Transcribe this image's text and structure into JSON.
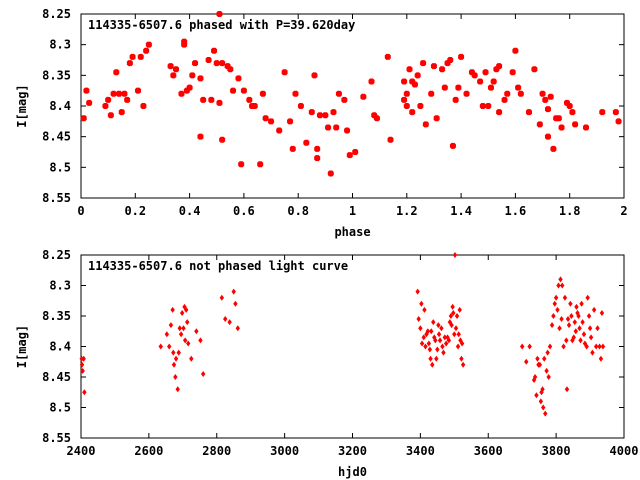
{
  "chart_data": [
    {
      "type": "scatter",
      "title": "114335-6507.6 phased with P=39.620day",
      "xlabel": "phase",
      "ylabel": "I[mag]",
      "xlim": [
        0,
        2
      ],
      "ylim": [
        8.55,
        8.25
      ],
      "y_inverted": true,
      "x_ticks": [
        "0",
        "0.2",
        "0.4",
        "0.6",
        "0.8",
        "1",
        "1.2",
        "1.4",
        "1.6",
        "1.8",
        "2"
      ],
      "y_ticks": [
        "8.25",
        "8.3",
        "8.35",
        "8.4",
        "8.45",
        "8.5",
        "8.55"
      ],
      "marker_color": "#ff0000",
      "marker": "filled-square",
      "points": [
        [
          0.01,
          8.42
        ],
        [
          0.02,
          8.375
        ],
        [
          0.03,
          8.395
        ],
        [
          0.09,
          8.4
        ],
        [
          0.1,
          8.39
        ],
        [
          0.11,
          8.415
        ],
        [
          0.12,
          8.38
        ],
        [
          0.13,
          8.345
        ],
        [
          0.14,
          8.38
        ],
        [
          0.15,
          8.41
        ],
        [
          0.16,
          8.38
        ],
        [
          0.17,
          8.39
        ],
        [
          0.18,
          8.33
        ],
        [
          0.19,
          8.32
        ],
        [
          0.21,
          8.375
        ],
        [
          0.22,
          8.32
        ],
        [
          0.23,
          8.4
        ],
        [
          0.24,
          8.31
        ],
        [
          0.25,
          8.3
        ],
        [
          0.33,
          8.335
        ],
        [
          0.34,
          8.35
        ],
        [
          0.35,
          8.34
        ],
        [
          0.37,
          8.38
        ],
        [
          0.38,
          8.295
        ],
        [
          0.38,
          8.3
        ],
        [
          0.39,
          8.375
        ],
        [
          0.4,
          8.37
        ],
        [
          0.41,
          8.35
        ],
        [
          0.42,
          8.33
        ],
        [
          0.44,
          8.355
        ],
        [
          0.44,
          8.45
        ],
        [
          0.45,
          8.39
        ],
        [
          0.47,
          8.325
        ],
        [
          0.48,
          8.39
        ],
        [
          0.49,
          8.31
        ],
        [
          0.5,
          8.33
        ],
        [
          0.51,
          8.25
        ],
        [
          0.51,
          8.395
        ],
        [
          0.52,
          8.33
        ],
        [
          0.52,
          8.455
        ],
        [
          0.54,
          8.335
        ],
        [
          0.55,
          8.34
        ],
        [
          0.56,
          8.375
        ],
        [
          0.58,
          8.355
        ],
        [
          0.59,
          8.495
        ],
        [
          0.6,
          8.375
        ],
        [
          0.62,
          8.39
        ],
        [
          0.63,
          8.4
        ],
        [
          0.64,
          8.4
        ],
        [
          0.66,
          8.495
        ],
        [
          0.67,
          8.38
        ],
        [
          0.68,
          8.42
        ],
        [
          0.7,
          8.425
        ],
        [
          0.73,
          8.44
        ],
        [
          0.75,
          8.345
        ],
        [
          0.77,
          8.425
        ],
        [
          0.78,
          8.47
        ],
        [
          0.79,
          8.38
        ],
        [
          0.81,
          8.4
        ],
        [
          0.83,
          8.46
        ],
        [
          0.85,
          8.41
        ],
        [
          0.86,
          8.35
        ],
        [
          0.87,
          8.47
        ],
        [
          0.87,
          8.485
        ],
        [
          0.88,
          8.415
        ],
        [
          0.9,
          8.415
        ],
        [
          0.91,
          8.435
        ],
        [
          0.92,
          8.51
        ],
        [
          0.93,
          8.41
        ],
        [
          0.94,
          8.435
        ],
        [
          0.95,
          8.38
        ],
        [
          0.97,
          8.39
        ],
        [
          0.98,
          8.44
        ],
        [
          0.99,
          8.48
        ],
        [
          1.01,
          8.475
        ],
        [
          1.04,
          8.385
        ],
        [
          1.07,
          8.36
        ],
        [
          1.08,
          8.415
        ],
        [
          1.09,
          8.42
        ],
        [
          1.13,
          8.32
        ],
        [
          1.14,
          8.455
        ],
        [
          1.19,
          8.36
        ],
        [
          1.19,
          8.39
        ],
        [
          1.2,
          8.38
        ],
        [
          1.2,
          8.4
        ],
        [
          1.21,
          8.34
        ],
        [
          1.22,
          8.36
        ],
        [
          1.22,
          8.41
        ],
        [
          1.23,
          8.365
        ],
        [
          1.24,
          8.35
        ],
        [
          1.25,
          8.4
        ],
        [
          1.26,
          8.33
        ],
        [
          1.27,
          8.43
        ],
        [
          1.29,
          8.38
        ],
        [
          1.3,
          8.335
        ],
        [
          1.31,
          8.42
        ],
        [
          1.33,
          8.34
        ],
        [
          1.34,
          8.37
        ],
        [
          1.35,
          8.33
        ],
        [
          1.36,
          8.325
        ],
        [
          1.37,
          8.465
        ],
        [
          1.38,
          8.39
        ],
        [
          1.39,
          8.37
        ],
        [
          1.4,
          8.32
        ],
        [
          1.42,
          8.38
        ],
        [
          1.44,
          8.345
        ],
        [
          1.45,
          8.35
        ],
        [
          1.47,
          8.36
        ],
        [
          1.48,
          8.4
        ],
        [
          1.49,
          8.345
        ],
        [
          1.5,
          8.4
        ],
        [
          1.51,
          8.37
        ],
        [
          1.52,
          8.36
        ],
        [
          1.53,
          8.34
        ],
        [
          1.54,
          8.335
        ],
        [
          1.54,
          8.41
        ],
        [
          1.56,
          8.39
        ],
        [
          1.57,
          8.38
        ],
        [
          1.59,
          8.345
        ],
        [
          1.6,
          8.31
        ],
        [
          1.61,
          8.37
        ],
        [
          1.62,
          8.38
        ],
        [
          1.65,
          8.41
        ],
        [
          1.67,
          8.34
        ],
        [
          1.69,
          8.43
        ],
        [
          1.7,
          8.38
        ],
        [
          1.71,
          8.39
        ],
        [
          1.72,
          8.405
        ],
        [
          1.72,
          8.45
        ],
        [
          1.73,
          8.385
        ],
        [
          1.74,
          8.47
        ],
        [
          1.75,
          8.42
        ],
        [
          1.76,
          8.42
        ],
        [
          1.77,
          8.435
        ],
        [
          1.79,
          8.395
        ],
        [
          1.8,
          8.4
        ],
        [
          1.81,
          8.41
        ],
        [
          1.82,
          8.43
        ],
        [
          1.86,
          8.435
        ],
        [
          1.92,
          8.41
        ],
        [
          1.97,
          8.41
        ],
        [
          1.98,
          8.425
        ]
      ]
    },
    {
      "type": "scatter",
      "title": "114335-6507.6 not phased light curve",
      "xlabel": "hjd0",
      "ylabel": "I[mag]",
      "xlim": [
        2400,
        4000
      ],
      "ylim": [
        8.55,
        8.25
      ],
      "y_inverted": true,
      "x_ticks": [
        "2400",
        "2600",
        "2800",
        "3000",
        "3200",
        "3400",
        "3600",
        "3800",
        "4000"
      ],
      "y_ticks": [
        "8.25",
        "8.3",
        "8.35",
        "8.4",
        "8.45",
        "8.5",
        "8.55"
      ],
      "marker_color": "#ff0000",
      "marker": "filled-diamond",
      "points": [
        [
          2402,
          8.42
        ],
        [
          2403,
          8.43
        ],
        [
          2405,
          8.44
        ],
        [
          2408,
          8.42
        ],
        [
          2410,
          8.475
        ],
        [
          2635,
          8.4
        ],
        [
          2653,
          8.38
        ],
        [
          2660,
          8.4
        ],
        [
          2665,
          8.365
        ],
        [
          2670,
          8.34
        ],
        [
          2672,
          8.41
        ],
        [
          2674,
          8.43
        ],
        [
          2678,
          8.45
        ],
        [
          2680,
          8.42
        ],
        [
          2685,
          8.47
        ],
        [
          2688,
          8.41
        ],
        [
          2691,
          8.37
        ],
        [
          2695,
          8.38
        ],
        [
          2698,
          8.345
        ],
        [
          2702,
          8.37
        ],
        [
          2705,
          8.335
        ],
        [
          2707,
          8.39
        ],
        [
          2710,
          8.34
        ],
        [
          2713,
          8.36
        ],
        [
          2716,
          8.395
        ],
        [
          2725,
          8.42
        ],
        [
          2740,
          8.375
        ],
        [
          2752,
          8.39
        ],
        [
          2760,
          8.445
        ],
        [
          2815,
          8.32
        ],
        [
          2825,
          8.355
        ],
        [
          2838,
          8.36
        ],
        [
          2850,
          8.31
        ],
        [
          2855,
          8.33
        ],
        [
          2862,
          8.37
        ],
        [
          3392,
          8.31
        ],
        [
          3395,
          8.355
        ],
        [
          3400,
          8.37
        ],
        [
          3403,
          8.33
        ],
        [
          3405,
          8.395
        ],
        [
          3410,
          8.385
        ],
        [
          3412,
          8.34
        ],
        [
          3415,
          8.4
        ],
        [
          3418,
          8.38
        ],
        [
          3422,
          8.375
        ],
        [
          3425,
          8.395
        ],
        [
          3428,
          8.405
        ],
        [
          3430,
          8.42
        ],
        [
          3432,
          8.375
        ],
        [
          3435,
          8.43
        ],
        [
          3438,
          8.36
        ],
        [
          3441,
          8.385
        ],
        [
          3444,
          8.39
        ],
        [
          3447,
          8.42
        ],
        [
          3450,
          8.405
        ],
        [
          3453,
          8.365
        ],
        [
          3455,
          8.38
        ],
        [
          3458,
          8.39
        ],
        [
          3462,
          8.37
        ],
        [
          3465,
          8.4
        ],
        [
          3468,
          8.41
        ],
        [
          3472,
          8.385
        ],
        [
          3476,
          8.395
        ],
        [
          3480,
          8.385
        ],
        [
          3484,
          8.39
        ],
        [
          3487,
          8.36
        ],
        [
          3490,
          8.35
        ],
        [
          3492,
          8.365
        ],
        [
          3495,
          8.335
        ],
        [
          3497,
          8.345
        ],
        [
          3500,
          8.38
        ],
        [
          3502,
          8.25
        ],
        [
          3505,
          8.37
        ],
        [
          3508,
          8.35
        ],
        [
          3511,
          8.4
        ],
        [
          3513,
          8.38
        ],
        [
          3516,
          8.34
        ],
        [
          3518,
          8.39
        ],
        [
          3521,
          8.42
        ],
        [
          3523,
          8.395
        ],
        [
          3526,
          8.43
        ],
        [
          3700,
          8.4
        ],
        [
          3712,
          8.425
        ],
        [
          3722,
          8.4
        ],
        [
          3735,
          8.455
        ],
        [
          3738,
          8.45
        ],
        [
          3742,
          8.48
        ],
        [
          3745,
          8.42
        ],
        [
          3748,
          8.43
        ],
        [
          3752,
          8.43
        ],
        [
          3755,
          8.49
        ],
        [
          3757,
          8.475
        ],
        [
          3760,
          8.47
        ],
        [
          3762,
          8.5
        ],
        [
          3765,
          8.42
        ],
        [
          3768,
          8.51
        ],
        [
          3772,
          8.44
        ],
        [
          3775,
          8.41
        ],
        [
          3778,
          8.45
        ],
        [
          3782,
          8.4
        ],
        [
          3788,
          8.365
        ],
        [
          3792,
          8.35
        ],
        [
          3796,
          8.33
        ],
        [
          3800,
          8.32
        ],
        [
          3804,
          8.34
        ],
        [
          3807,
          8.3
        ],
        [
          3810,
          8.37
        ],
        [
          3813,
          8.29
        ],
        [
          3816,
          8.355
        ],
        [
          3818,
          8.3
        ],
        [
          3822,
          8.4
        ],
        [
          3826,
          8.32
        ],
        [
          3830,
          8.39
        ],
        [
          3832,
          8.47
        ],
        [
          3835,
          8.355
        ],
        [
          3838,
          8.365
        ],
        [
          3842,
          8.33
        ],
        [
          3845,
          8.35
        ],
        [
          3848,
          8.39
        ],
        [
          3852,
          8.385
        ],
        [
          3855,
          8.36
        ],
        [
          3858,
          8.375
        ],
        [
          3860,
          8.335
        ],
        [
          3863,
          8.345
        ],
        [
          3866,
          8.35
        ],
        [
          3869,
          8.37
        ],
        [
          3872,
          8.39
        ],
        [
          3875,
          8.33
        ],
        [
          3878,
          8.36
        ],
        [
          3882,
          8.38
        ],
        [
          3885,
          8.395
        ],
        [
          3890,
          8.4
        ],
        [
          3893,
          8.32
        ],
        [
          3897,
          8.35
        ],
        [
          3900,
          8.37
        ],
        [
          3903,
          8.385
        ],
        [
          3907,
          8.41
        ],
        [
          3912,
          8.34
        ],
        [
          3918,
          8.4
        ],
        [
          3922,
          8.37
        ],
        [
          3928,
          8.4
        ],
        [
          3932,
          8.42
        ],
        [
          3935,
          8.345
        ],
        [
          3938,
          8.4
        ]
      ]
    }
  ]
}
